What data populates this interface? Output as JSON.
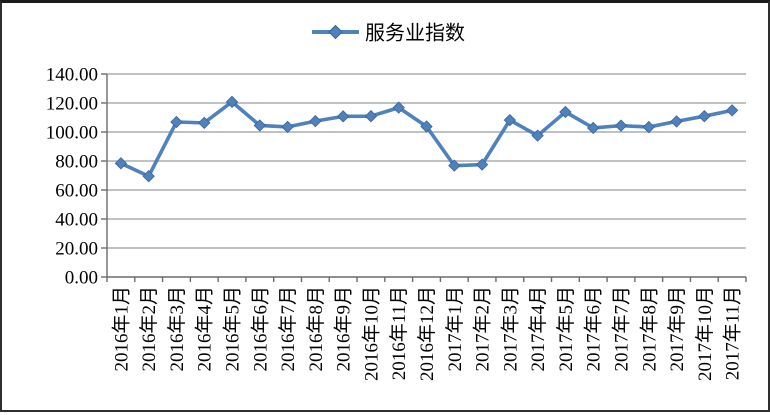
{
  "chart_data": {
    "type": "line",
    "title": "",
    "legend_label": "服务业指数",
    "legend_position": "top-center",
    "categories": [
      "2016年1月",
      "2016年2月",
      "2016年3月",
      "2016年4月",
      "2016年5月",
      "2016年6月",
      "2016年7月",
      "2016年8月",
      "2016年9月",
      "2016年10月",
      "2016年11月",
      "2016年12月",
      "2017年1月",
      "2017年2月",
      "2017年3月",
      "2017年4月",
      "2017年5月",
      "2017年6月",
      "2017年7月",
      "2017年8月",
      "2017年9月",
      "2017年10月",
      "2017年11月"
    ],
    "series": [
      {
        "name": "服务业指数",
        "values": [
          78.4,
          69.5,
          106.9,
          106.3,
          120.8,
          104.5,
          103.5,
          107.5,
          110.8,
          110.9,
          116.8,
          103.8,
          76.8,
          77.5,
          108.2,
          97.5,
          113.8,
          102.8,
          104.4,
          103.4,
          107.3,
          110.9,
          114.9
        ]
      }
    ],
    "ylim": [
      0,
      140
    ],
    "ytick_step": 20,
    "ytick_labels": [
      "0.00",
      "20.00",
      "40.00",
      "60.00",
      "80.00",
      "100.00",
      "120.00",
      "140.00"
    ],
    "grid": true,
    "marker": "diamond",
    "colors": {
      "series": "#4F81BD",
      "marker_edge": "#3A6596",
      "gridline": "#9C9C9C",
      "axis": "#6B6B6B",
      "text": "#000000",
      "background": "#FFFFFF"
    }
  }
}
